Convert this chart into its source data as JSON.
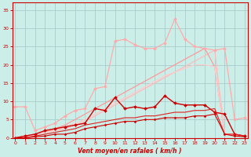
{
  "title": "",
  "xlabel": "Vent moyen/en rafales ( km/h )",
  "ylabel": "",
  "bg_color": "#cceee8",
  "grid_color": "#aacccc",
  "x": [
    0,
    1,
    2,
    3,
    4,
    5,
    6,
    7,
    8,
    9,
    10,
    11,
    12,
    13,
    14,
    15,
    16,
    17,
    18,
    19,
    20,
    21,
    22,
    23
  ],
  "lines": [
    {
      "y": [
        0,
        0.5,
        1.0,
        1.5,
        2.0,
        2.5,
        3.5,
        4.5,
        6.0,
        7.5,
        9.0,
        10.5,
        12.0,
        13.5,
        15.0,
        16.5,
        18.0,
        19.5,
        21.0,
        22.5,
        24.0,
        1.0,
        1.0,
        0.5
      ],
      "color": "#ffbbbb",
      "lw": 0.9,
      "marker": null
    },
    {
      "y": [
        0,
        0.5,
        1.0,
        1.5,
        2.5,
        3.5,
        5.0,
        6.5,
        8.0,
        9.5,
        11.0,
        12.5,
        14.0,
        15.5,
        17.0,
        18.5,
        20.0,
        21.5,
        23.0,
        24.5,
        19.5,
        1.0,
        1.0,
        0.5
      ],
      "color": "#ff9999",
      "lw": 0.9,
      "marker": null
    },
    {
      "y": [
        8.5,
        8.5,
        2.0,
        3.0,
        4.0,
        6.0,
        7.5,
        8.0,
        13.5,
        14.0,
        26.5,
        27.0,
        25.5,
        24.5,
        24.5,
        26.0,
        32.5,
        27.0,
        25.0,
        24.5,
        24.0,
        24.5,
        5.0,
        5.5
      ],
      "color": "#ffaaaa",
      "lw": 0.9,
      "marker": "D",
      "ms": 2
    },
    {
      "y": [
        0,
        0.3,
        0.8,
        1.5,
        2.0,
        3.0,
        4.0,
        5.0,
        6.5,
        8.0,
        9.5,
        11.0,
        12.5,
        14.0,
        15.5,
        17.0,
        18.0,
        19.0,
        20.0,
        20.0,
        19.5,
        1.0,
        1.0,
        0.5
      ],
      "color": "#ffcccc",
      "lw": 0.9,
      "marker": null
    },
    {
      "y": [
        0,
        0.5,
        1.0,
        2.0,
        2.5,
        3.0,
        3.5,
        4.0,
        8.0,
        7.5,
        11.0,
        8.0,
        8.5,
        8.0,
        8.5,
        11.5,
        9.5,
        9.0,
        9.0,
        9.0,
        7.0,
        6.5,
        1.0,
        0.5
      ],
      "color": "#cc0000",
      "lw": 1.0,
      "marker": "D",
      "ms": 2
    },
    {
      "y": [
        0,
        0.0,
        0.5,
        1.0,
        1.5,
        2.0,
        2.5,
        3.5,
        4.0,
        4.5,
        5.0,
        5.5,
        5.5,
        6.0,
        6.0,
        6.5,
        7.0,
        7.0,
        7.5,
        7.5,
        8.0,
        1.0,
        1.0,
        0.5
      ],
      "color": "#dd2222",
      "lw": 0.8,
      "marker": null
    },
    {
      "y": [
        0,
        0.0,
        0.3,
        0.5,
        1.0,
        1.0,
        1.5,
        2.5,
        3.0,
        3.5,
        4.0,
        4.5,
        4.5,
        5.0,
        5.0,
        5.5,
        5.5,
        5.5,
        6.0,
        6.0,
        6.5,
        1.0,
        0.5,
        0.3
      ],
      "color": "#cc0000",
      "lw": 0.8,
      "marker": "D",
      "ms": 1.5
    }
  ],
  "yticks": [
    0,
    5,
    10,
    15,
    20,
    25,
    30,
    35
  ],
  "xticks": [
    0,
    1,
    2,
    3,
    4,
    5,
    6,
    7,
    8,
    9,
    10,
    11,
    12,
    13,
    14,
    15,
    16,
    17,
    18,
    19,
    20,
    21,
    22,
    23
  ],
  "xlim": [
    -0.3,
    23.3
  ],
  "ylim": [
    0,
    37
  ]
}
